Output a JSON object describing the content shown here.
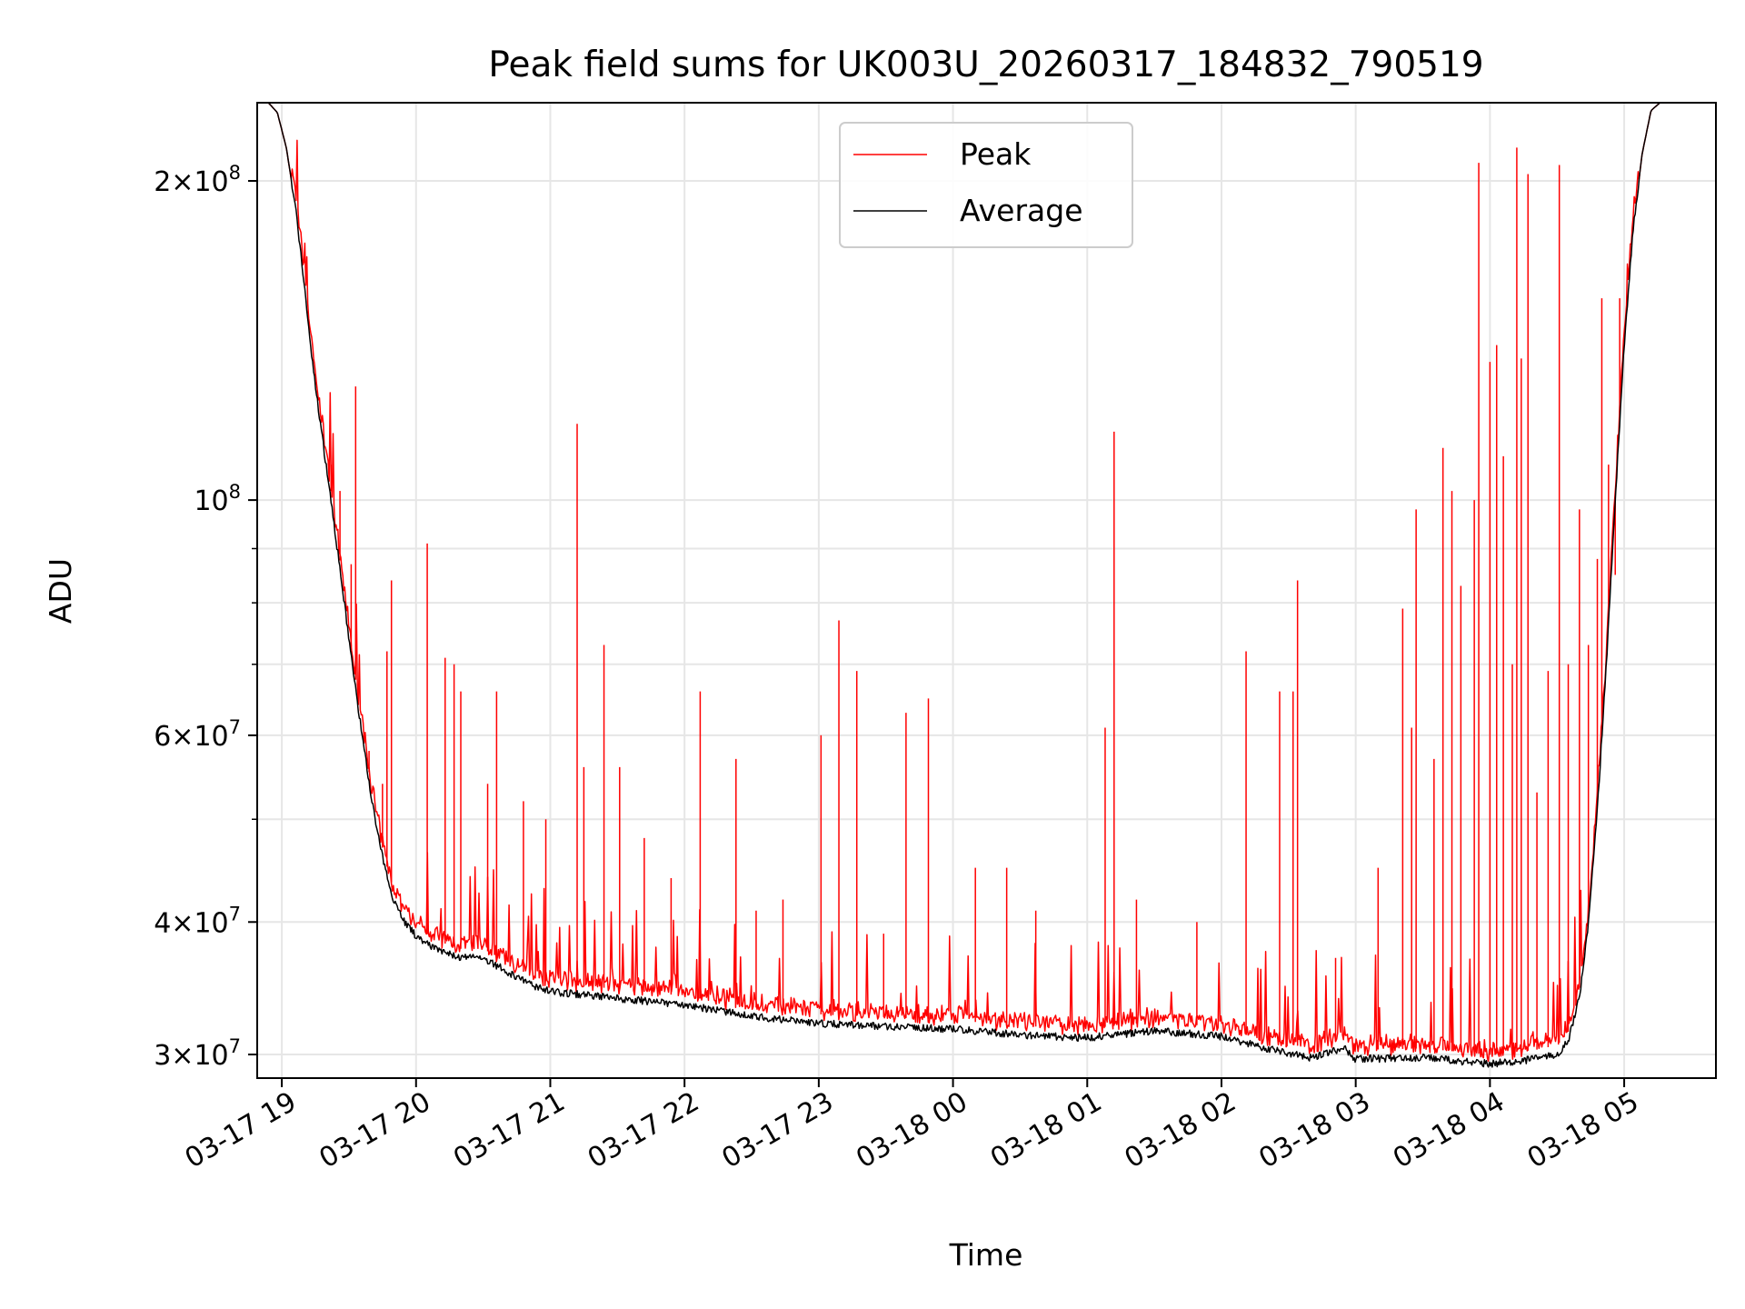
{
  "chart_data": {
    "type": "line",
    "title": "Peak field sums for UK003U_20260317_184832_790519",
    "xlabel": "Time",
    "ylabel": "ADU",
    "y_scale": "log",
    "ylim": [
      28500000,
      237000000
    ],
    "xlim": [
      "2026-03-17 18:49",
      "2026-03-18 05:41"
    ],
    "grid": true,
    "legend": {
      "position": "upper center"
    },
    "x_tick_labels": [
      "03-17 19",
      "03-17 20",
      "03-17 21",
      "03-17 22",
      "03-17 23",
      "03-18 00",
      "03-18 01",
      "03-18 02",
      "03-18 03",
      "03-18 04",
      "03-18 05"
    ],
    "x_ticks": [
      "2026-03-17 19:00",
      "2026-03-17 20:00",
      "2026-03-17 21:00",
      "2026-03-17 22:00",
      "2026-03-17 23:00",
      "2026-03-18 00:00",
      "2026-03-18 01:00",
      "2026-03-18 02:00",
      "2026-03-18 03:00",
      "2026-03-18 04:00",
      "2026-03-18 05:00"
    ],
    "y_ticks": [
      {
        "value": 30000000,
        "mantissa": "3",
        "exp": "7"
      },
      {
        "value": 40000000,
        "mantissa": "4",
        "exp": "7"
      },
      {
        "value": 60000000,
        "mantissa": "6",
        "exp": "7"
      },
      {
        "value": 100000000,
        "mantissa": "",
        "exp": "8"
      },
      {
        "value": 200000000,
        "mantissa": "2",
        "exp": "8"
      }
    ],
    "y_minor_ticks": [
      50000000,
      70000000,
      80000000,
      90000000
    ],
    "series": [
      {
        "name": "Peak",
        "color": "#ff0000",
        "spikes": [
          [
            "2026-03-17 19:22",
            108000000
          ],
          [
            "2026-03-17 19:26",
            102000000
          ],
          [
            "2026-03-17 19:31",
            87000000
          ],
          [
            "2026-03-17 19:33",
            128000000
          ],
          [
            "2026-03-17 19:39",
            58000000
          ],
          [
            "2026-03-17 19:45",
            54000000
          ],
          [
            "2026-03-17 19:47",
            72000000
          ],
          [
            "2026-03-17 19:49",
            84000000
          ],
          [
            "2026-03-17 20:05",
            91000000
          ],
          [
            "2026-03-17 20:13",
            71000000
          ],
          [
            "2026-03-17 20:17",
            70000000
          ],
          [
            "2026-03-17 20:20",
            66000000
          ],
          [
            "2026-03-17 20:32",
            54000000
          ],
          [
            "2026-03-17 20:36",
            66000000
          ],
          [
            "2026-03-17 20:48",
            52000000
          ],
          [
            "2026-03-17 20:58",
            50000000
          ],
          [
            "2026-03-17 21:12",
            118000000
          ],
          [
            "2026-03-17 21:15",
            56000000
          ],
          [
            "2026-03-17 21:24",
            73000000
          ],
          [
            "2026-03-17 21:31",
            56000000
          ],
          [
            "2026-03-17 21:42",
            48000000
          ],
          [
            "2026-03-17 21:54",
            44000000
          ],
          [
            "2026-03-17 22:07",
            66000000
          ],
          [
            "2026-03-17 22:23",
            57000000
          ],
          [
            "2026-03-17 22:32",
            41000000
          ],
          [
            "2026-03-17 22:44",
            42000000
          ],
          [
            "2026-03-17 23:01",
            60000000
          ],
          [
            "2026-03-17 23:09",
            77000000
          ],
          [
            "2026-03-17 23:17",
            69000000
          ],
          [
            "2026-03-17 23:29",
            39000000
          ],
          [
            "2026-03-17 23:39",
            63000000
          ],
          [
            "2026-03-17 23:49",
            65000000
          ],
          [
            "2026-03-18 00:10",
            45000000
          ],
          [
            "2026-03-18 00:24",
            45000000
          ],
          [
            "2026-03-18 00:37",
            41000000
          ],
          [
            "2026-03-18 01:08",
            61000000
          ],
          [
            "2026-03-18 01:12",
            116000000
          ],
          [
            "2026-03-18 01:22",
            42000000
          ],
          [
            "2026-03-18 01:49",
            40000000
          ],
          [
            "2026-03-18 02:11",
            72000000
          ],
          [
            "2026-03-18 02:26",
            66000000
          ],
          [
            "2026-03-18 02:32",
            66000000
          ],
          [
            "2026-03-18 02:34",
            84000000
          ],
          [
            "2026-03-18 02:51",
            37000000
          ],
          [
            "2026-03-18 03:10",
            45000000
          ],
          [
            "2026-03-18 03:21",
            79000000
          ],
          [
            "2026-03-18 03:25",
            61000000
          ],
          [
            "2026-03-18 03:27",
            98000000
          ],
          [
            "2026-03-18 03:35",
            57000000
          ],
          [
            "2026-03-18 03:39",
            112000000
          ],
          [
            "2026-03-18 03:43",
            102000000
          ],
          [
            "2026-03-18 03:47",
            83000000
          ],
          [
            "2026-03-18 03:53",
            100000000
          ],
          [
            "2026-03-18 03:55",
            208000000
          ],
          [
            "2026-03-18 04:00",
            135000000
          ],
          [
            "2026-03-18 04:03",
            140000000
          ],
          [
            "2026-03-18 04:06",
            110000000
          ],
          [
            "2026-03-18 04:10",
            70000000
          ],
          [
            "2026-03-18 04:12",
            215000000
          ],
          [
            "2026-03-18 04:14",
            136000000
          ],
          [
            "2026-03-18 04:17",
            203000000
          ],
          [
            "2026-03-18 04:21",
            53000000
          ],
          [
            "2026-03-18 04:26",
            69000000
          ],
          [
            "2026-03-18 04:31",
            207000000
          ],
          [
            "2026-03-18 04:35",
            70000000
          ],
          [
            "2026-03-18 04:40",
            98000000
          ],
          [
            "2026-03-18 04:44",
            73000000
          ],
          [
            "2026-03-18 04:48",
            88000000
          ],
          [
            "2026-03-18 04:50",
            155000000
          ],
          [
            "2026-03-18 04:53",
            108000000
          ],
          [
            "2026-03-18 04:56",
            85000000
          ],
          [
            "2026-03-18 04:58",
            155000000
          ]
        ]
      },
      {
        "name": "Average",
        "color": "#000000",
        "points": [
          [
            "2026-03-17 18:49",
            237000000
          ],
          [
            "2026-03-17 18:54",
            237000000
          ],
          [
            "2026-03-17 18:58",
            232000000
          ],
          [
            "2026-03-17 19:02",
            215000000
          ],
          [
            "2026-03-17 19:06",
            190000000
          ],
          [
            "2026-03-17 19:10",
            160000000
          ],
          [
            "2026-03-17 19:14",
            133000000
          ],
          [
            "2026-03-17 19:18",
            115000000
          ],
          [
            "2026-03-17 19:22",
            100000000
          ],
          [
            "2026-03-17 19:26",
            86000000
          ],
          [
            "2026-03-17 19:30",
            74000000
          ],
          [
            "2026-03-17 19:34",
            64000000
          ],
          [
            "2026-03-17 19:38",
            56000000
          ],
          [
            "2026-03-17 19:42",
            49500000
          ],
          [
            "2026-03-17 19:46",
            45000000
          ],
          [
            "2026-03-17 19:50",
            42000000
          ],
          [
            "2026-03-17 19:55",
            40000000
          ],
          [
            "2026-03-17 20:00",
            38800000
          ],
          [
            "2026-03-17 20:10",
            37600000
          ],
          [
            "2026-03-17 20:20",
            37000000
          ],
          [
            "2026-03-17 20:30",
            37000000
          ],
          [
            "2026-03-17 20:40",
            36000000
          ],
          [
            "2026-03-17 20:50",
            35000000
          ],
          [
            "2026-03-17 21:00",
            34400000
          ],
          [
            "2026-03-17 21:30",
            33900000
          ],
          [
            "2026-03-17 22:00",
            33400000
          ],
          [
            "2026-03-17 22:30",
            32600000
          ],
          [
            "2026-03-17 23:00",
            32100000
          ],
          [
            "2026-03-17 23:30",
            31900000
          ],
          [
            "2026-03-18 00:00",
            31700000
          ],
          [
            "2026-03-18 00:30",
            31300000
          ],
          [
            "2026-03-18 01:00",
            31100000
          ],
          [
            "2026-03-18 01:30",
            31600000
          ],
          [
            "2026-03-18 02:00",
            31200000
          ],
          [
            "2026-03-18 02:20",
            30400000
          ],
          [
            "2026-03-18 02:40",
            29800000
          ],
          [
            "2026-03-18 02:55",
            30400000
          ],
          [
            "2026-03-18 03:00",
            29700000
          ],
          [
            "2026-03-18 03:30",
            29800000
          ],
          [
            "2026-03-18 04:00",
            29400000
          ],
          [
            "2026-03-18 04:20",
            29700000
          ],
          [
            "2026-03-18 04:30",
            30000000
          ],
          [
            "2026-03-18 04:35",
            30900000
          ],
          [
            "2026-03-18 04:40",
            34000000
          ],
          [
            "2026-03-18 04:44",
            40000000
          ],
          [
            "2026-03-18 04:48",
            51000000
          ],
          [
            "2026-03-18 04:52",
            70000000
          ],
          [
            "2026-03-18 04:56",
            100000000
          ],
          [
            "2026-03-18 05:00",
            140000000
          ],
          [
            "2026-03-18 05:04",
            180000000
          ],
          [
            "2026-03-18 05:08",
            212000000
          ],
          [
            "2026-03-18 05:12",
            233000000
          ],
          [
            "2026-03-18 05:16",
            237000000
          ],
          [
            "2026-03-18 05:41",
            237000000
          ]
        ]
      }
    ]
  }
}
